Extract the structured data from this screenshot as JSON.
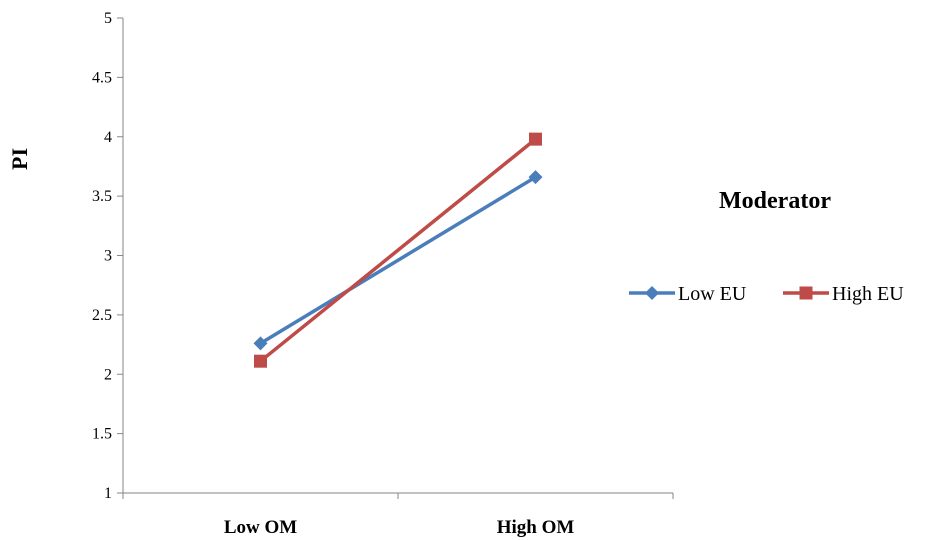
{
  "chart_data": {
    "type": "line",
    "categories": [
      "Low OM",
      "High OM"
    ],
    "ylabel": "PI",
    "xlabel": "",
    "ylim": [
      1,
      5
    ],
    "yticks": [
      "1",
      "1.5",
      "2",
      "2.5",
      "3",
      "3.5",
      "4",
      "4.5",
      "5"
    ],
    "grid": false,
    "legend": {
      "title": "Moderator",
      "placement": "right"
    },
    "series": [
      {
        "name": "Low EU",
        "values": [
          2.26,
          3.66
        ],
        "color": "#4A7EBB",
        "marker": "diamond"
      },
      {
        "name": "High EU",
        "values": [
          2.11,
          3.98
        ],
        "color": "#BE4B48",
        "marker": "square"
      }
    ]
  }
}
